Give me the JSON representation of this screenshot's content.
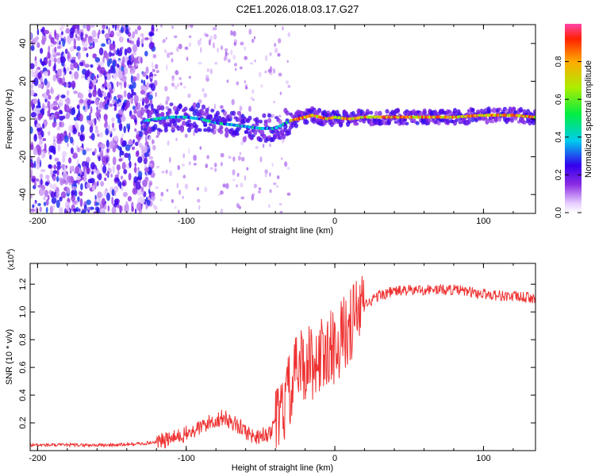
{
  "title": "C2E1.2026.018.03.17.G27",
  "chart_data": [
    {
      "type": "heatmap",
      "xlabel": "Height of straight line (km)",
      "ylabel": "Frequency (Hz)",
      "xlim": [
        -205,
        135
      ],
      "ylim": [
        -50,
        50
      ],
      "xticks": [
        -200,
        -100,
        0,
        100
      ],
      "xtick_labels": [
        "-200",
        "-100",
        "0",
        "100"
      ],
      "yticks": [
        -40,
        -20,
        0,
        20,
        40
      ],
      "ytick_labels": [
        "-40",
        "-20",
        "0",
        "20",
        "40"
      ],
      "ridge": {
        "x": [
          -128,
          -120,
          -110,
          -100,
          -90,
          -80,
          -70,
          -60,
          -50,
          -40,
          -30,
          -20,
          -15,
          -10,
          -5,
          0,
          10,
          20,
          40,
          60,
          80,
          100,
          120,
          135
        ],
        "y": [
          -1,
          0,
          1,
          1,
          0,
          -2,
          -3,
          -4,
          -5,
          -5,
          -1,
          1,
          2,
          1,
          0,
          1,
          0,
          1,
          1,
          1,
          1,
          2,
          2,
          1
        ]
      },
      "colorbar": {
        "label": "Normalized spectral amplitude",
        "range": [
          0.0,
          1.0
        ],
        "ticks": [
          0.0,
          0.2,
          0.4,
          0.6,
          0.8
        ],
        "tick_labels": [
          "0.0",
          "0.2",
          "0.4",
          "0.6",
          "0.8"
        ]
      }
    },
    {
      "type": "line",
      "xlabel": "Height of straight line (km)",
      "ylabel": "SNR (10 * v/v)",
      "y_multiplier": "(x10",
      "y_multiplier_exp": "4",
      "y_multiplier_close": ")",
      "xlim": [
        -205,
        135
      ],
      "ylim": [
        0.0,
        1.35
      ],
      "xticks": [
        -200,
        -100,
        0,
        100
      ],
      "xtick_labels": [
        "-200",
        "-100",
        "0",
        "100"
      ],
      "yticks": [
        0.2,
        0.4,
        0.6,
        0.8,
        1.0,
        1.2
      ],
      "ytick_labels": [
        "0.2",
        "0.4",
        "0.6",
        "0.8",
        "1.0",
        "1.2"
      ],
      "series": [
        {
          "name": "SNR",
          "color": "#ee3333",
          "x": [
            -205,
            -180,
            -150,
            -130,
            -115,
            -105,
            -95,
            -85,
            -75,
            -65,
            -55,
            -45,
            -38,
            -33,
            -28,
            -24,
            -20,
            -15,
            -10,
            -5,
            0,
            5,
            10,
            15,
            20,
            30,
            40,
            60,
            80,
            100,
            120,
            135
          ],
          "y": [
            0.04,
            0.04,
            0.04,
            0.05,
            0.07,
            0.1,
            0.14,
            0.2,
            0.24,
            0.18,
            0.1,
            0.12,
            0.2,
            0.35,
            0.5,
            0.6,
            0.62,
            0.64,
            0.68,
            0.72,
            0.76,
            0.82,
            0.9,
            0.98,
            1.05,
            1.12,
            1.15,
            1.16,
            1.16,
            1.13,
            1.11,
            1.1
          ]
        }
      ]
    }
  ]
}
